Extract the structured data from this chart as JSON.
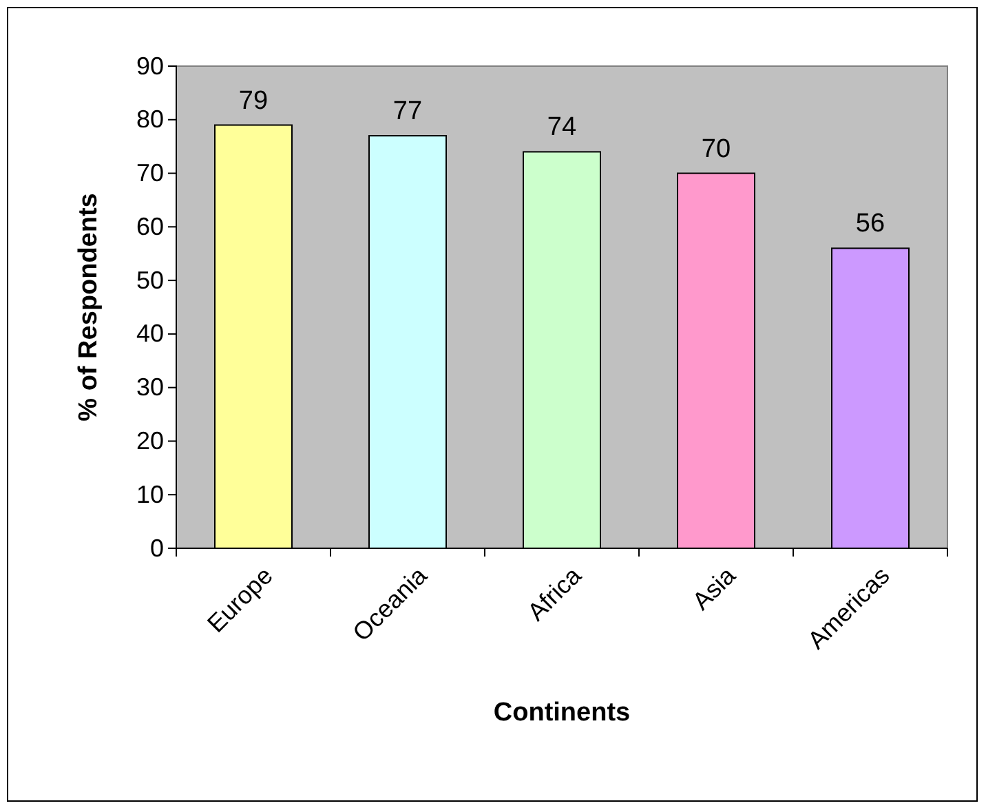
{
  "chart_data": {
    "type": "bar",
    "xlabel": "Continents",
    "ylabel": "% of Respondents",
    "categories": [
      "Europe",
      "Oceania",
      "Africa",
      "Asia",
      "Americas"
    ],
    "values": [
      79,
      77,
      74,
      70,
      56
    ],
    "colors": [
      "#ffff99",
      "#ccffff",
      "#ccffcc",
      "#ff99cc",
      "#cc99ff"
    ],
    "ylim": [
      0,
      90
    ],
    "yticks": [
      0,
      10,
      20,
      30,
      40,
      50,
      60,
      70,
      80,
      90
    ],
    "grid": false,
    "data_labels": true
  }
}
